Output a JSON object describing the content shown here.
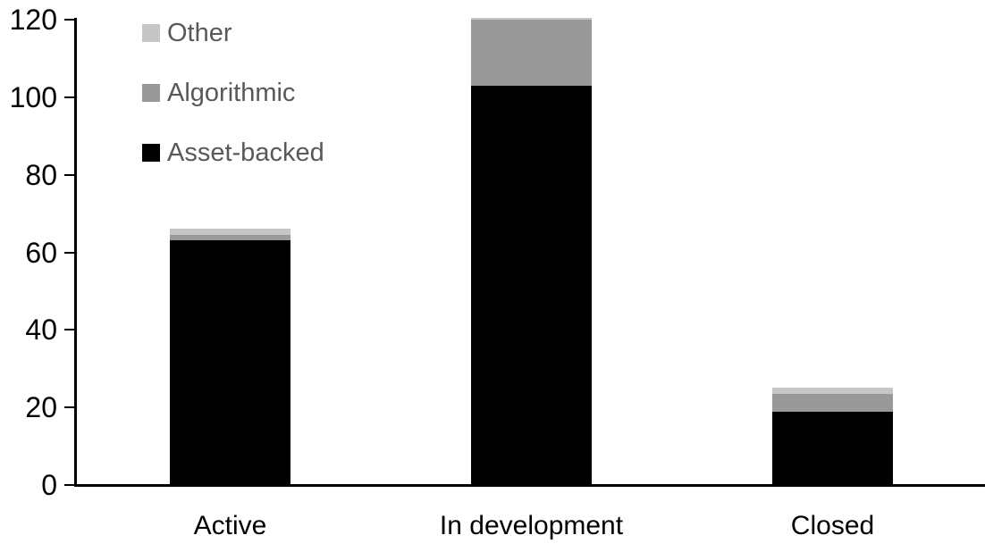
{
  "chart_data": {
    "type": "bar",
    "stacked": true,
    "title": "",
    "xlabel": "",
    "ylabel": "",
    "categories": [
      "Active",
      "In development",
      "Closed"
    ],
    "series": [
      {
        "name": "Asset-backed",
        "color": "#000000",
        "values": [
          63,
          103,
          19
        ]
      },
      {
        "name": "Algorithmic",
        "color": "#999999",
        "values": [
          1.5,
          17,
          4.5
        ]
      },
      {
        "name": "Other",
        "color": "#c6c6c6",
        "values": [
          1.5,
          0.5,
          1.5
        ]
      }
    ],
    "y_axis": {
      "min": 0,
      "max": 120,
      "tick_step": 20,
      "ticks": [
        0,
        20,
        40,
        60,
        80,
        100,
        120
      ]
    },
    "x_axis": {
      "labels": [
        "Active",
        "In development",
        "Closed"
      ]
    },
    "legend": {
      "position": "top-left",
      "items": [
        {
          "label": "Other",
          "color": "#c6c6c6"
        },
        {
          "label": "Algorithmic",
          "color": "#999999"
        },
        {
          "label": "Asset-backed",
          "color": "#000000"
        }
      ]
    },
    "grid": false,
    "colors": {
      "axis": "#000000",
      "tick_label_text": "#000000",
      "legend_text": "#595959",
      "background": "#ffffff"
    }
  }
}
